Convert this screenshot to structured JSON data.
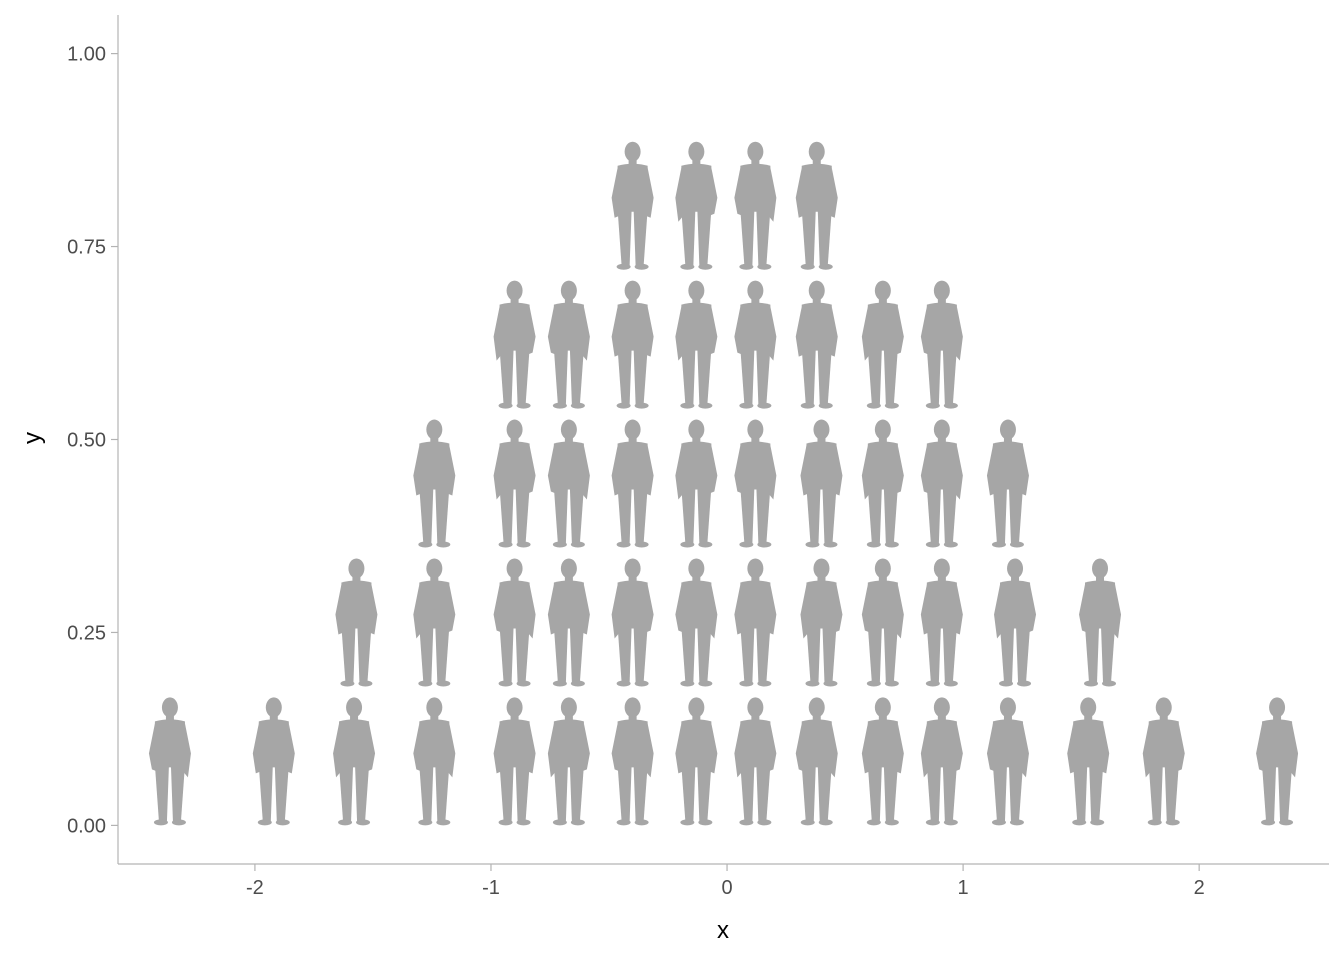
{
  "chart_data": {
    "type": "scatter",
    "mark": "person-silhouette",
    "mark_color": "#a6a6a6",
    "title": "",
    "xlabel": "x",
    "ylabel": "y",
    "xlim": [
      -2.58,
      2.55
    ],
    "ylim": [
      -0.05,
      1.05
    ],
    "x_ticks": [
      -2,
      -1,
      0,
      1,
      2
    ],
    "x_tick_labels": [
      "-2",
      "-1",
      "0",
      "1",
      "2"
    ],
    "y_ticks": [
      0,
      0.25,
      0.5,
      0.75,
      1
    ],
    "y_tick_labels": [
      "0.00",
      "0.25",
      "0.50",
      "0.75",
      "1.00"
    ],
    "grid": false,
    "legend": "none",
    "points": [
      {
        "x": -2.36,
        "y": 0.0
      },
      {
        "x": -1.92,
        "y": 0.0
      },
      {
        "x": -1.58,
        "y": 0.0
      },
      {
        "x": -1.24,
        "y": 0.0
      },
      {
        "x": -0.9,
        "y": 0.0
      },
      {
        "x": -0.67,
        "y": 0.0
      },
      {
        "x": -0.4,
        "y": 0.0
      },
      {
        "x": -0.13,
        "y": 0.0
      },
      {
        "x": 0.12,
        "y": 0.0
      },
      {
        "x": 0.38,
        "y": 0.0
      },
      {
        "x": 0.66,
        "y": 0.0
      },
      {
        "x": 0.91,
        "y": 0.0
      },
      {
        "x": 1.19,
        "y": 0.0
      },
      {
        "x": 1.53,
        "y": 0.0
      },
      {
        "x": 1.85,
        "y": 0.0
      },
      {
        "x": 2.33,
        "y": 0.0
      },
      {
        "x": -1.57,
        "y": 0.18
      },
      {
        "x": -1.24,
        "y": 0.18
      },
      {
        "x": -0.9,
        "y": 0.18
      },
      {
        "x": -0.67,
        "y": 0.18
      },
      {
        "x": -0.4,
        "y": 0.18
      },
      {
        "x": -0.13,
        "y": 0.18
      },
      {
        "x": 0.12,
        "y": 0.18
      },
      {
        "x": 0.4,
        "y": 0.18
      },
      {
        "x": 0.66,
        "y": 0.18
      },
      {
        "x": 0.91,
        "y": 0.18
      },
      {
        "x": 1.22,
        "y": 0.18
      },
      {
        "x": 1.58,
        "y": 0.18
      },
      {
        "x": -1.24,
        "y": 0.36
      },
      {
        "x": -0.9,
        "y": 0.36
      },
      {
        "x": -0.67,
        "y": 0.36
      },
      {
        "x": -0.4,
        "y": 0.36
      },
      {
        "x": -0.13,
        "y": 0.36
      },
      {
        "x": 0.12,
        "y": 0.36
      },
      {
        "x": 0.4,
        "y": 0.36
      },
      {
        "x": 0.66,
        "y": 0.36
      },
      {
        "x": 0.91,
        "y": 0.36
      },
      {
        "x": 1.19,
        "y": 0.36
      },
      {
        "x": -0.9,
        "y": 0.54
      },
      {
        "x": -0.67,
        "y": 0.54
      },
      {
        "x": -0.4,
        "y": 0.54
      },
      {
        "x": -0.13,
        "y": 0.54
      },
      {
        "x": 0.12,
        "y": 0.54
      },
      {
        "x": 0.38,
        "y": 0.54
      },
      {
        "x": 0.66,
        "y": 0.54
      },
      {
        "x": 0.91,
        "y": 0.54
      },
      {
        "x": -0.4,
        "y": 0.72
      },
      {
        "x": -0.13,
        "y": 0.72
      },
      {
        "x": 0.12,
        "y": 0.72
      },
      {
        "x": 0.38,
        "y": 0.72
      }
    ]
  }
}
